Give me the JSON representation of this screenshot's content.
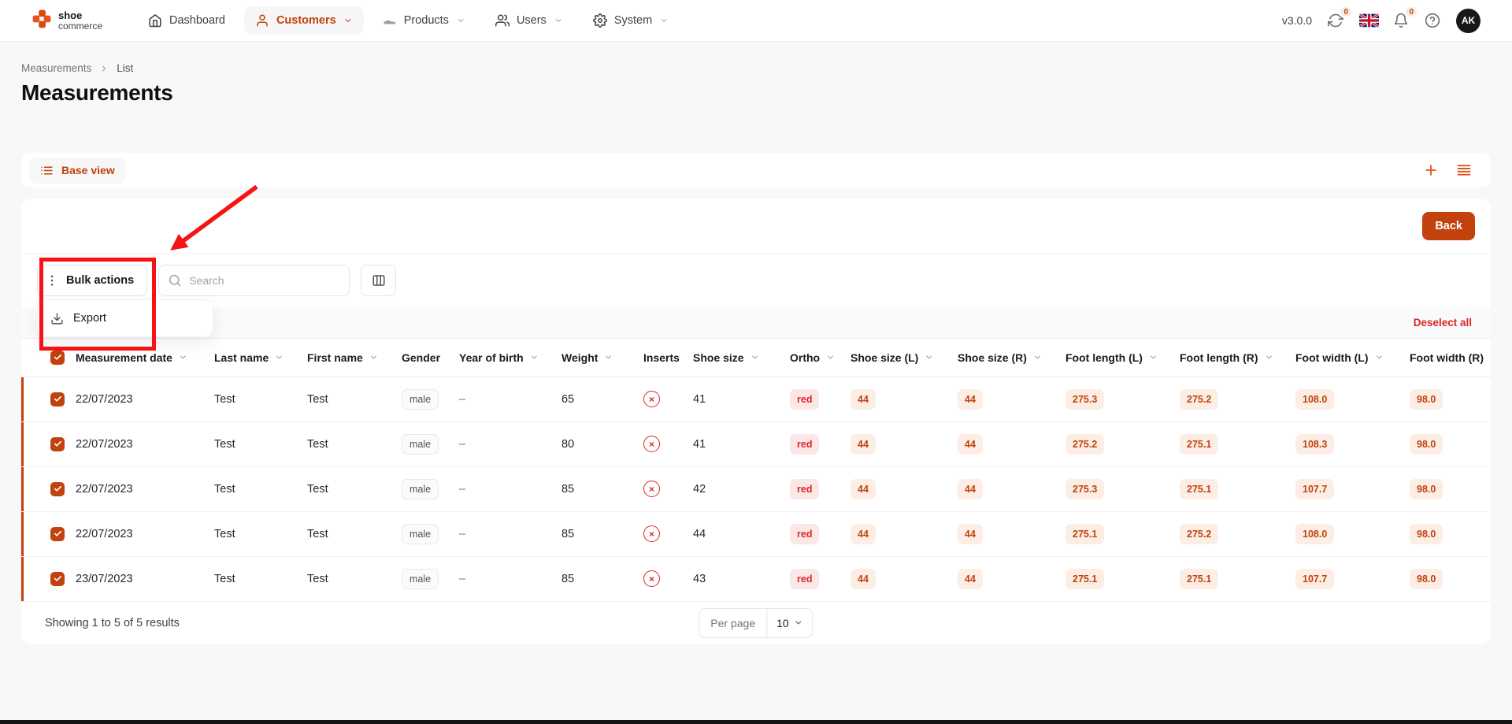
{
  "colors": {
    "accent": "#C2410C",
    "accent_badge_bg": "#FCEEE4",
    "red": "#DC2626",
    "red_badge_bg": "#FCE7E7",
    "annotation": "#F51313",
    "avatar_bg": "#18181B"
  },
  "nav": {
    "logo_line1": "shoe",
    "logo_line2": "commerce",
    "items": [
      {
        "label": "Dashboard",
        "icon": "home",
        "active": false,
        "has_dropdown": false
      },
      {
        "label": "Customers",
        "icon": "user",
        "active": true,
        "has_dropdown": true
      },
      {
        "label": "Products",
        "icon": "shoe",
        "active": false,
        "has_dropdown": true
      },
      {
        "label": "Users",
        "icon": "users",
        "active": false,
        "has_dropdown": true
      },
      {
        "label": "System",
        "icon": "gear",
        "active": false,
        "has_dropdown": true
      }
    ],
    "version": "v3.0.0",
    "sync_badge": "0",
    "notifications_badge": "0",
    "avatar_initials": "AK"
  },
  "breadcrumb": {
    "items": [
      "Measurements",
      "List"
    ]
  },
  "page": {
    "title": "Measurements"
  },
  "view_bar": {
    "label": "Base view",
    "right_icons": [
      "plus-icon",
      "rows-icon"
    ]
  },
  "panel": {
    "back_label": "Back",
    "bulk_actions_label": "Bulk actions",
    "export_label": "Export",
    "search_placeholder": "Search",
    "deselect_all_label": "Deselect all"
  },
  "table": {
    "columns": [
      {
        "key": "date",
        "label": "Measurement date",
        "sortable": true,
        "type": "text"
      },
      {
        "key": "last_name",
        "label": "Last name",
        "sortable": true,
        "type": "text"
      },
      {
        "key": "first_name",
        "label": "First name",
        "sortable": true,
        "type": "text"
      },
      {
        "key": "gender",
        "label": "Gender",
        "sortable": false,
        "type": "badge_gray"
      },
      {
        "key": "year_of_birth",
        "label": "Year of birth",
        "sortable": true,
        "type": "text"
      },
      {
        "key": "weight",
        "label": "Weight",
        "sortable": true,
        "type": "text"
      },
      {
        "key": "inserts",
        "label": "Inserts",
        "sortable": false,
        "type": "icon_no"
      },
      {
        "key": "shoe_size",
        "label": "Shoe size",
        "sortable": true,
        "type": "text"
      },
      {
        "key": "ortho",
        "label": "Ortho",
        "sortable": true,
        "type": "badge_red"
      },
      {
        "key": "shoe_size_l",
        "label": "Shoe size (L)",
        "sortable": true,
        "type": "badge_orange"
      },
      {
        "key": "shoe_size_r",
        "label": "Shoe size (R)",
        "sortable": true,
        "type": "badge_orange"
      },
      {
        "key": "foot_length_l",
        "label": "Foot length (L)",
        "sortable": true,
        "type": "badge_orange"
      },
      {
        "key": "foot_length_r",
        "label": "Foot length (R)",
        "sortable": true,
        "type": "badge_orange"
      },
      {
        "key": "foot_width_l",
        "label": "Foot width (L)",
        "sortable": true,
        "type": "badge_orange"
      },
      {
        "key": "foot_width_r",
        "label": "Foot width (R)",
        "sortable": false,
        "type": "badge_orange"
      }
    ],
    "rows": [
      {
        "selected": true,
        "date": "22/07/2023",
        "last_name": "Test",
        "first_name": "Test",
        "gender": "male",
        "year_of_birth": "–",
        "weight": "65",
        "inserts": "no",
        "shoe_size": "41",
        "ortho": "red",
        "shoe_size_l": "44",
        "shoe_size_r": "44",
        "foot_length_l": "275.3",
        "foot_length_r": "275.2",
        "foot_width_l": "108.0",
        "foot_width_r": "98.0"
      },
      {
        "selected": true,
        "date": "22/07/2023",
        "last_name": "Test",
        "first_name": "Test",
        "gender": "male",
        "year_of_birth": "–",
        "weight": "80",
        "inserts": "no",
        "shoe_size": "41",
        "ortho": "red",
        "shoe_size_l": "44",
        "shoe_size_r": "44",
        "foot_length_l": "275.2",
        "foot_length_r": "275.1",
        "foot_width_l": "108.3",
        "foot_width_r": "98.0"
      },
      {
        "selected": true,
        "date": "22/07/2023",
        "last_name": "Test",
        "first_name": "Test",
        "gender": "male",
        "year_of_birth": "–",
        "weight": "85",
        "inserts": "no",
        "shoe_size": "42",
        "ortho": "red",
        "shoe_size_l": "44",
        "shoe_size_r": "44",
        "foot_length_l": "275.3",
        "foot_length_r": "275.1",
        "foot_width_l": "107.7",
        "foot_width_r": "98.0"
      },
      {
        "selected": true,
        "date": "22/07/2023",
        "last_name": "Test",
        "first_name": "Test",
        "gender": "male",
        "year_of_birth": "–",
        "weight": "85",
        "inserts": "no",
        "shoe_size": "44",
        "ortho": "red",
        "shoe_size_l": "44",
        "shoe_size_r": "44",
        "foot_length_l": "275.1",
        "foot_length_r": "275.2",
        "foot_width_l": "108.0",
        "foot_width_r": "98.0"
      },
      {
        "selected": true,
        "date": "23/07/2023",
        "last_name": "Test",
        "first_name": "Test",
        "gender": "male",
        "year_of_birth": "–",
        "weight": "85",
        "inserts": "no",
        "shoe_size": "43",
        "ortho": "red",
        "shoe_size_l": "44",
        "shoe_size_r": "44",
        "foot_length_l": "275.1",
        "foot_length_r": "275.1",
        "foot_width_l": "107.7",
        "foot_width_r": "98.0"
      }
    ]
  },
  "footer": {
    "summary": "Showing 1 to 5 of 5 results",
    "per_page_label": "Per page",
    "per_page_value": "10"
  }
}
